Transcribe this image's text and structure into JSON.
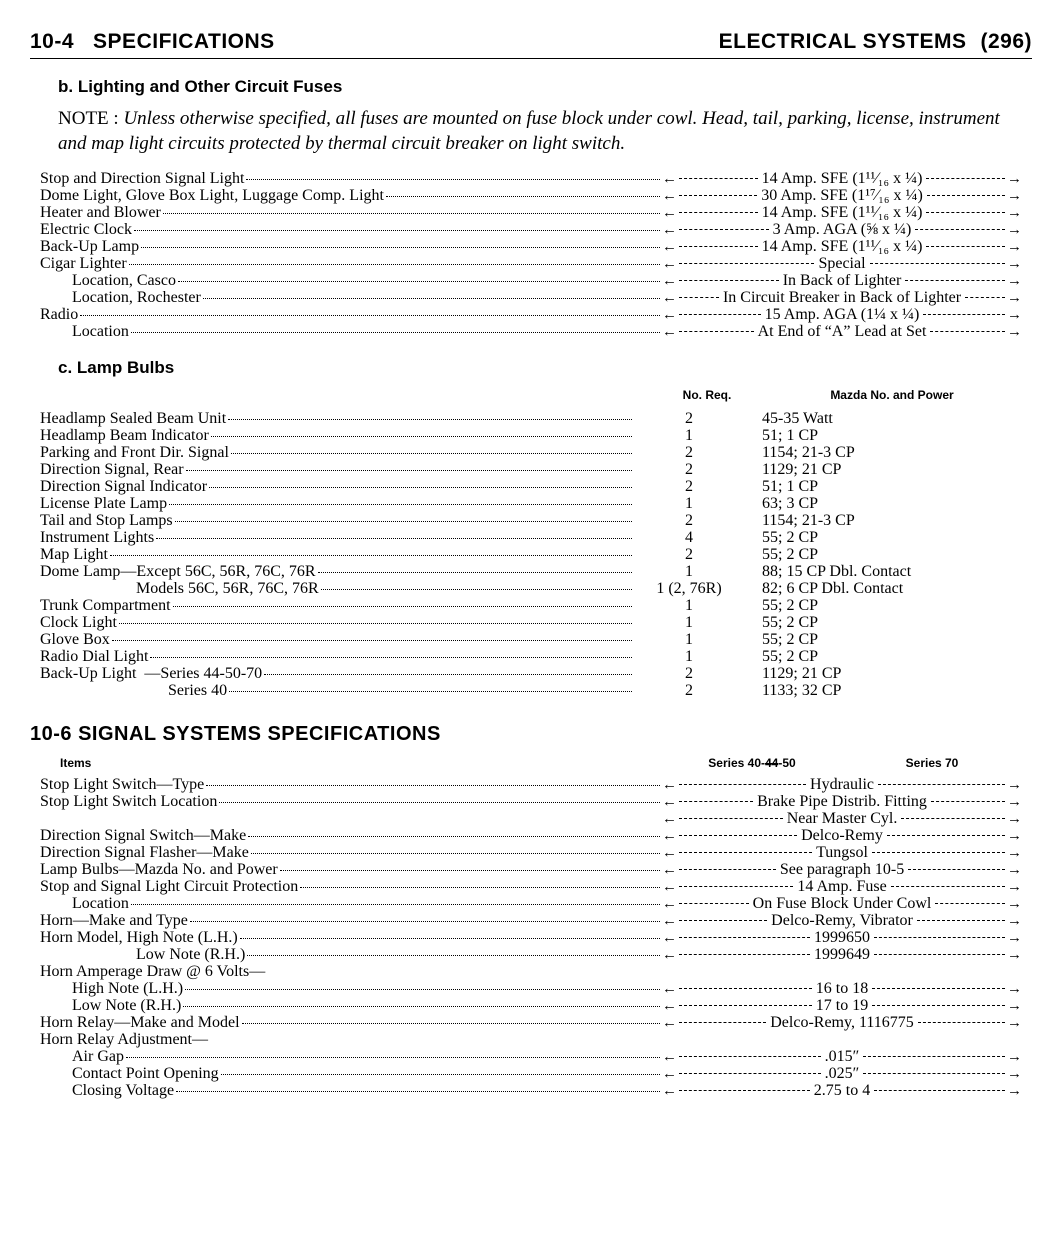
{
  "header": {
    "page_code": "10-4",
    "left_title": "SPECIFICATIONS",
    "right_title": "ELECTRICAL SYSTEMS",
    "page_num": "(296)"
  },
  "section_b": {
    "heading": "b.  Lighting and Other Circuit Fuses",
    "note_label": "NOTE : ",
    "note_body": "Unless otherwise specified, all fuses are mounted on fuse block under cowl. Head, tail, parking, license, instrument and map light circuits protected by thermal circuit breaker on light switch.",
    "rows": [
      {
        "label": "Stop and Direction Signal Light",
        "indent": 0,
        "value": "14 Amp. SFE (1¹¹⁄₁₆ x ¼)"
      },
      {
        "label": "Dome Light, Glove Box Light, Luggage Comp. Light",
        "indent": 0,
        "value": "30 Amp. SFE (1¹⁷⁄₁₆ x ¼)"
      },
      {
        "label": "Heater and Blower",
        "indent": 0,
        "value": "14 Amp. SFE (1¹¹⁄₁₆ x ¼)"
      },
      {
        "label": "Electric Clock",
        "indent": 0,
        "value": "3 Amp. AGA (⅝ x ¼)"
      },
      {
        "label": "Back-Up Lamp",
        "indent": 0,
        "value": "14 Amp. SFE (1¹¹⁄₁₆ x ¼)"
      },
      {
        "label": "Cigar Lighter",
        "indent": 0,
        "value": "Special"
      },
      {
        "label": "Location, Casco",
        "indent": 1,
        "value": "In Back of Lighter"
      },
      {
        "label": "Location, Rochester",
        "indent": 1,
        "value": "In Circuit Breaker in Back of Lighter"
      },
      {
        "label": "Radio",
        "indent": 0,
        "value": "15 Amp. AGA (1¼ x ¼)"
      },
      {
        "label": "Location",
        "indent": 1,
        "value": "At End of “A” Lead at Set"
      }
    ]
  },
  "section_c": {
    "heading": "c.  Lamp Bulbs",
    "col2": "No. Req.",
    "col3": "Mazda No. and Power",
    "rows": [
      {
        "label": "Headlamp Sealed Beam Unit",
        "indent": 0,
        "qty": "2",
        "val": "45-35 Watt"
      },
      {
        "label": "Headlamp Beam Indicator",
        "indent": 0,
        "qty": "1",
        "val": "51; 1 CP"
      },
      {
        "label": "Parking and Front Dir. Signal",
        "indent": 0,
        "qty": "2",
        "val": "1154; 21-3 CP"
      },
      {
        "label": "Direction Signal, Rear",
        "indent": 0,
        "qty": "2",
        "val": "1129; 21 CP"
      },
      {
        "label": "Direction Signal Indicator",
        "indent": 0,
        "qty": "2",
        "val": "51; 1 CP"
      },
      {
        "label": "License Plate Lamp",
        "indent": 0,
        "qty": "1",
        "val": "63; 3 CP"
      },
      {
        "label": "Tail and Stop Lamps",
        "indent": 0,
        "qty": "2",
        "val": "1154; 21-3 CP"
      },
      {
        "label": "Instrument Lights",
        "indent": 0,
        "qty": "4",
        "val": "55; 2 CP"
      },
      {
        "label": "Map Light",
        "indent": 0,
        "qty": "2",
        "val": "55; 2 CP"
      },
      {
        "label": "Dome Lamp—Except 56C, 56R, 76C, 76R",
        "indent": 0,
        "qty": "1",
        "val": "88; 15 CP Dbl. Contact"
      },
      {
        "label": "Models 56C, 56R, 76C, 76R",
        "indent": 3,
        "qty": "1 (2, 76R)",
        "val": "82; 6 CP Dbl. Contact"
      },
      {
        "label": "Trunk Compartment",
        "indent": 0,
        "qty": "1",
        "val": "55; 2 CP"
      },
      {
        "label": "Clock Light",
        "indent": 0,
        "qty": "1",
        "val": "55; 2 CP"
      },
      {
        "label": "Glove Box",
        "indent": 0,
        "qty": "1",
        "val": "55; 2 CP"
      },
      {
        "label": "Radio Dial Light",
        "indent": 0,
        "qty": "1",
        "val": "55; 2 CP"
      },
      {
        "label": "Back-Up Light  —Series 44-50-70",
        "indent": 0,
        "qty": "2",
        "val": "1129; 21 CP"
      },
      {
        "label": "Series 40",
        "indent": 4,
        "qty": "2",
        "val": "1133; 32 CP"
      }
    ]
  },
  "section_signal": {
    "heading": "10-6  SIGNAL SYSTEMS SPECIFICATIONS",
    "items_label": "Items",
    "col2": "Series 40-44-50",
    "col2_strike": "44",
    "col3": "Series 70",
    "rows": [
      {
        "label": "Stop Light Switch—Type",
        "indent": 0,
        "value": "Hydraulic"
      },
      {
        "label": "Stop Light Switch Location",
        "indent": 0,
        "value": "Brake Pipe Distrib. Fitting"
      },
      {
        "label": "",
        "indent": 0,
        "nolabel": true,
        "value": "Near Master Cyl."
      },
      {
        "label": "Direction Signal Switch—Make",
        "indent": 0,
        "value": "Delco-Remy"
      },
      {
        "label": "Direction Signal Flasher—Make",
        "indent": 0,
        "value": "Tungsol"
      },
      {
        "label": "Lamp Bulbs—Mazda No. and Power",
        "indent": 0,
        "value": "See paragraph 10-5"
      },
      {
        "label": "Stop and Signal Light Circuit Protection",
        "indent": 0,
        "value": "14 Amp. Fuse"
      },
      {
        "label": "Location",
        "indent": 1,
        "value": "On Fuse Block Under Cowl"
      },
      {
        "label": "Horn—Make and Type",
        "indent": 0,
        "value": "Delco-Remy, Vibrator"
      },
      {
        "label": "Horn Model, High Note (L.H.)",
        "indent": 0,
        "value": "1999650"
      },
      {
        "label": "Low Note (R.H.)",
        "indent": 3,
        "value": "1999649"
      },
      {
        "label": "Horn Amperage Draw @ 6 Volts—",
        "indent": 0,
        "nolabelDots": true
      },
      {
        "label": "High Note (L.H.)",
        "indent": 1,
        "value": "16 to 18"
      },
      {
        "label": "Low Note (R.H.)",
        "indent": 1,
        "value": "17 to 19"
      },
      {
        "label": "Horn Relay—Make and Model",
        "indent": 0,
        "value": "Delco-Remy, 1116775"
      },
      {
        "label": "Horn Relay Adjustment—",
        "indent": 0,
        "nolabelDots": true
      },
      {
        "label": "Air Gap",
        "indent": 1,
        "value": ".015″"
      },
      {
        "label": "Contact Point Opening",
        "indent": 1,
        "value": ".025″"
      },
      {
        "label": "Closing Voltage",
        "indent": 1,
        "value": "2.75 to 4"
      }
    ]
  }
}
